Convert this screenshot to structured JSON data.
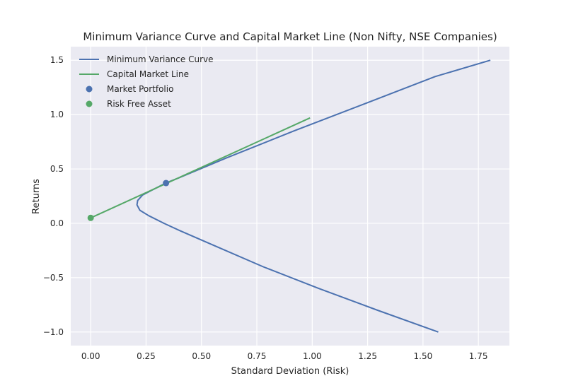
{
  "chart_data": {
    "type": "line",
    "title": "Minimum Variance Curve and Capital Market Line (Non Nifty, NSE Companies)",
    "xlabel": "Standard Deviation (Risk)",
    "ylabel": "Returns",
    "xlim": [
      -0.09,
      1.89
    ],
    "ylim": [
      -1.125,
      1.625
    ],
    "xticks": [
      0.0,
      0.25,
      0.5,
      0.75,
      1.0,
      1.25,
      1.5,
      1.75
    ],
    "xtick_labels": [
      "0.00",
      "0.25",
      "0.50",
      "0.75",
      "1.00",
      "1.25",
      "1.50",
      "1.75"
    ],
    "yticks": [
      -1.0,
      -0.5,
      0.0,
      0.5,
      1.0,
      1.5
    ],
    "ytick_labels": [
      "−1.0",
      "−0.5",
      "0.0",
      "0.5",
      "1.0",
      "1.5"
    ],
    "grid": true,
    "legend_position": "top-left",
    "series": [
      {
        "name": "Minimum Variance Curve",
        "kind": "line",
        "color": "#4c72b0",
        "x": [
          1.569,
          1.295,
          1.03,
          0.779,
          0.552,
          0.405,
          0.331,
          0.262,
          0.222,
          0.209,
          0.212,
          0.234,
          0.272,
          0.339,
          0.4,
          0.611,
          0.918,
          1.237,
          1.555,
          1.804
        ],
        "y": [
          -1.0,
          -0.8,
          -0.6,
          -0.4,
          -0.2,
          -0.07,
          0.0,
          0.07,
          0.12,
          0.17,
          0.21,
          0.26,
          0.3,
          0.37,
          0.42,
          0.6,
          0.85,
          1.1,
          1.35,
          1.5
        ]
      },
      {
        "name": "Capital Market Line",
        "kind": "line",
        "color": "#55a868",
        "x": [
          0.0,
          0.99
        ],
        "y": [
          0.05,
          0.97
        ]
      },
      {
        "name": "Market Portfolio",
        "kind": "point",
        "color": "#4c72b0",
        "x": [
          0.34
        ],
        "y": [
          0.37
        ]
      },
      {
        "name": "Risk Free Asset",
        "kind": "point",
        "color": "#55a868",
        "x": [
          0.0
        ],
        "y": [
          0.05
        ]
      }
    ]
  },
  "colors": {
    "plot_background": "#eaeaf2",
    "grid": "#ffffff",
    "text": "#262626"
  }
}
